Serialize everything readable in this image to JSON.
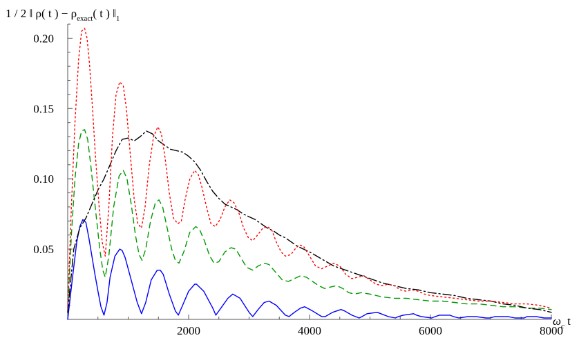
{
  "chart_data": {
    "type": "line",
    "title": "",
    "xlabel": {
      "prefix": "ω",
      "sub": "c",
      "suffix": " t"
    },
    "ylabel": {
      "before": "1 / 2 ‖ ρ( t ) − ρ",
      "sub": "exact",
      "after": "( t ) ‖",
      "sub2": "1"
    },
    "xlim": [
      0,
      8000
    ],
    "ylim": [
      0,
      0.21
    ],
    "grid": false,
    "legend": "none",
    "x_ticks": [
      2000,
      4000,
      6000,
      8000
    ],
    "x_tick_labels": [
      "2000",
      "4000",
      "6000",
      "8000"
    ],
    "y_ticks": [
      0.05,
      0.1,
      0.15,
      0.2
    ],
    "y_tick_labels": [
      "0.05",
      "0.10",
      "0.15",
      "0.20"
    ],
    "series": [
      {
        "color": "#0000ff",
        "dash": "solid",
        "x": [
          0,
          80,
          150,
          200,
          250,
          300,
          350,
          400,
          450,
          500,
          550,
          600,
          650,
          700,
          780,
          860,
          900,
          950,
          1050,
          1150,
          1220,
          1290,
          1380,
          1480,
          1530,
          1580,
          1680,
          1780,
          1830,
          1900,
          2000,
          2100,
          2130,
          2250,
          2400,
          2450,
          2550,
          2650,
          2730,
          2850,
          3000,
          3060,
          3150,
          3250,
          3330,
          3450,
          3600,
          3660,
          3750,
          3850,
          3920,
          4050,
          4200,
          4260,
          4380,
          4520,
          4580,
          4700,
          4820,
          4870,
          4950,
          5120,
          5180,
          5300,
          5420,
          5470,
          5550,
          5720,
          5770,
          5850,
          6020,
          6080,
          6150,
          6320,
          6380,
          6470,
          6620,
          6680,
          6750,
          6920,
          6980,
          7070,
          7220,
          7280,
          7400,
          7550,
          7600,
          7750,
          7880,
          7950,
          8000
        ],
        "y": [
          0.0,
          0.03,
          0.055,
          0.066,
          0.071,
          0.069,
          0.058,
          0.045,
          0.032,
          0.02,
          0.009,
          0.003,
          0.012,
          0.03,
          0.045,
          0.05,
          0.049,
          0.044,
          0.028,
          0.012,
          0.004,
          0.012,
          0.028,
          0.035,
          0.035,
          0.032,
          0.018,
          0.006,
          0.003,
          0.01,
          0.02,
          0.025,
          0.025,
          0.02,
          0.008,
          0.003,
          0.009,
          0.015,
          0.018,
          0.015,
          0.005,
          0.002,
          0.007,
          0.012,
          0.013,
          0.01,
          0.003,
          0.002,
          0.005,
          0.008,
          0.009,
          0.006,
          0.002,
          0.002,
          0.005,
          0.007,
          0.006,
          0.003,
          0.001,
          0.002,
          0.004,
          0.005,
          0.004,
          0.002,
          0.001,
          0.002,
          0.003,
          0.004,
          0.003,
          0.002,
          0.001,
          0.002,
          0.003,
          0.003,
          0.002,
          0.001,
          0.002,
          0.002,
          0.002,
          0.001,
          0.001,
          0.002,
          0.002,
          0.002,
          0.001,
          0.001,
          0.002,
          0.002,
          0.001,
          0.001,
          0.001
        ]
      },
      {
        "color": "#009900",
        "dash": "8,6",
        "x": [
          0,
          60,
          120,
          180,
          230,
          280,
          330,
          380,
          430,
          480,
          530,
          580,
          620,
          680,
          760,
          850,
          920,
          980,
          1050,
          1120,
          1180,
          1230,
          1290,
          1370,
          1450,
          1510,
          1570,
          1640,
          1720,
          1780,
          1840,
          1920,
          2020,
          2120,
          2180,
          2260,
          2350,
          2420,
          2500,
          2600,
          2700,
          2780,
          2860,
          2960,
          3060,
          3150,
          3250,
          3330,
          3430,
          3550,
          3650,
          3750,
          3850,
          3950,
          4050,
          4150,
          4250,
          4350,
          4450,
          4550,
          4650,
          4750,
          4850,
          5000,
          5200,
          5400,
          5600,
          5800,
          6000,
          6200,
          6400,
          6600,
          6800,
          7000,
          7200,
          7400,
          7600,
          7800,
          8000
        ],
        "y": [
          0.005,
          0.06,
          0.1,
          0.125,
          0.134,
          0.135,
          0.128,
          0.11,
          0.09,
          0.07,
          0.05,
          0.035,
          0.03,
          0.045,
          0.08,
          0.102,
          0.106,
          0.1,
          0.082,
          0.06,
          0.046,
          0.042,
          0.05,
          0.07,
          0.083,
          0.085,
          0.08,
          0.066,
          0.05,
          0.042,
          0.04,
          0.048,
          0.062,
          0.066,
          0.064,
          0.056,
          0.045,
          0.04,
          0.041,
          0.048,
          0.051,
          0.05,
          0.044,
          0.037,
          0.035,
          0.038,
          0.04,
          0.039,
          0.034,
          0.028,
          0.027,
          0.029,
          0.031,
          0.03,
          0.027,
          0.024,
          0.022,
          0.023,
          0.024,
          0.022,
          0.019,
          0.018,
          0.019,
          0.018,
          0.016,
          0.015,
          0.015,
          0.014,
          0.013,
          0.013,
          0.012,
          0.011,
          0.011,
          0.01,
          0.009,
          0.009,
          0.008,
          0.008,
          0.007
        ]
      },
      {
        "color": "#000000",
        "dash": "12,4,2,4",
        "x": [
          0,
          100,
          200,
          300,
          400,
          500,
          600,
          700,
          800,
          900,
          1000,
          1100,
          1200,
          1300,
          1400,
          1500,
          1600,
          1700,
          1800,
          1900,
          2000,
          2100,
          2200,
          2300,
          2400,
          2500,
          2600,
          2700,
          2800,
          2900,
          3000,
          3100,
          3200,
          3300,
          3400,
          3500,
          3600,
          3700,
          3800,
          3900,
          4000,
          4200,
          4400,
          4600,
          4800,
          5000,
          5200,
          5400,
          5600,
          5800,
          6000,
          6200,
          6400,
          6600,
          6800,
          7000,
          7200,
          7400,
          7600,
          7800,
          8000
        ],
        "y": [
          0.005,
          0.05,
          0.065,
          0.072,
          0.082,
          0.092,
          0.1,
          0.11,
          0.12,
          0.128,
          0.129,
          0.127,
          0.13,
          0.134,
          0.132,
          0.127,
          0.124,
          0.121,
          0.12,
          0.119,
          0.116,
          0.112,
          0.106,
          0.098,
          0.091,
          0.086,
          0.082,
          0.08,
          0.078,
          0.075,
          0.073,
          0.071,
          0.068,
          0.065,
          0.063,
          0.06,
          0.058,
          0.055,
          0.052,
          0.05,
          0.048,
          0.043,
          0.038,
          0.035,
          0.032,
          0.029,
          0.026,
          0.024,
          0.022,
          0.021,
          0.019,
          0.018,
          0.017,
          0.015,
          0.014,
          0.013,
          0.011,
          0.01,
          0.008,
          0.007,
          0.005
        ]
      },
      {
        "color": "#ff0000",
        "dash": "2,4",
        "x": [
          0,
          60,
          120,
          180,
          230,
          280,
          320,
          360,
          410,
          460,
          520,
          570,
          620,
          680,
          740,
          800,
          860,
          920,
          970,
          1030,
          1100,
          1160,
          1220,
          1280,
          1350,
          1420,
          1490,
          1550,
          1610,
          1680,
          1750,
          1820,
          1880,
          1940,
          2020,
          2100,
          2160,
          2220,
          2300,
          2370,
          2440,
          2520,
          2600,
          2680,
          2750,
          2830,
          2910,
          2990,
          3060,
          3140,
          3230,
          3310,
          3380,
          3450,
          3530,
          3600,
          3690,
          3760,
          3830,
          3900,
          4000,
          4100,
          4200,
          4300,
          4400,
          4500,
          4600,
          4700,
          4800,
          4900,
          5000,
          5100,
          5200,
          5300,
          5400,
          5500,
          5600,
          5700,
          5800,
          5900,
          6000,
          6200,
          6400,
          6600,
          6800,
          7000,
          7200,
          7400,
          7600,
          7800,
          8000
        ],
        "y": [
          0.008,
          0.08,
          0.14,
          0.185,
          0.205,
          0.207,
          0.2,
          0.182,
          0.15,
          0.115,
          0.08,
          0.055,
          0.045,
          0.08,
          0.13,
          0.16,
          0.169,
          0.166,
          0.15,
          0.12,
          0.085,
          0.068,
          0.065,
          0.08,
          0.11,
          0.13,
          0.137,
          0.132,
          0.115,
          0.09,
          0.072,
          0.068,
          0.07,
          0.085,
          0.1,
          0.106,
          0.103,
          0.094,
          0.079,
          0.068,
          0.066,
          0.071,
          0.08,
          0.085,
          0.083,
          0.076,
          0.065,
          0.058,
          0.056,
          0.06,
          0.065,
          0.066,
          0.063,
          0.055,
          0.048,
          0.045,
          0.046,
          0.05,
          0.053,
          0.052,
          0.045,
          0.038,
          0.036,
          0.038,
          0.04,
          0.038,
          0.032,
          0.029,
          0.03,
          0.031,
          0.028,
          0.025,
          0.024,
          0.025,
          0.024,
          0.021,
          0.02,
          0.021,
          0.02,
          0.018,
          0.017,
          0.016,
          0.015,
          0.014,
          0.013,
          0.013,
          0.012,
          0.011,
          0.011,
          0.01,
          0.008
        ]
      }
    ]
  }
}
